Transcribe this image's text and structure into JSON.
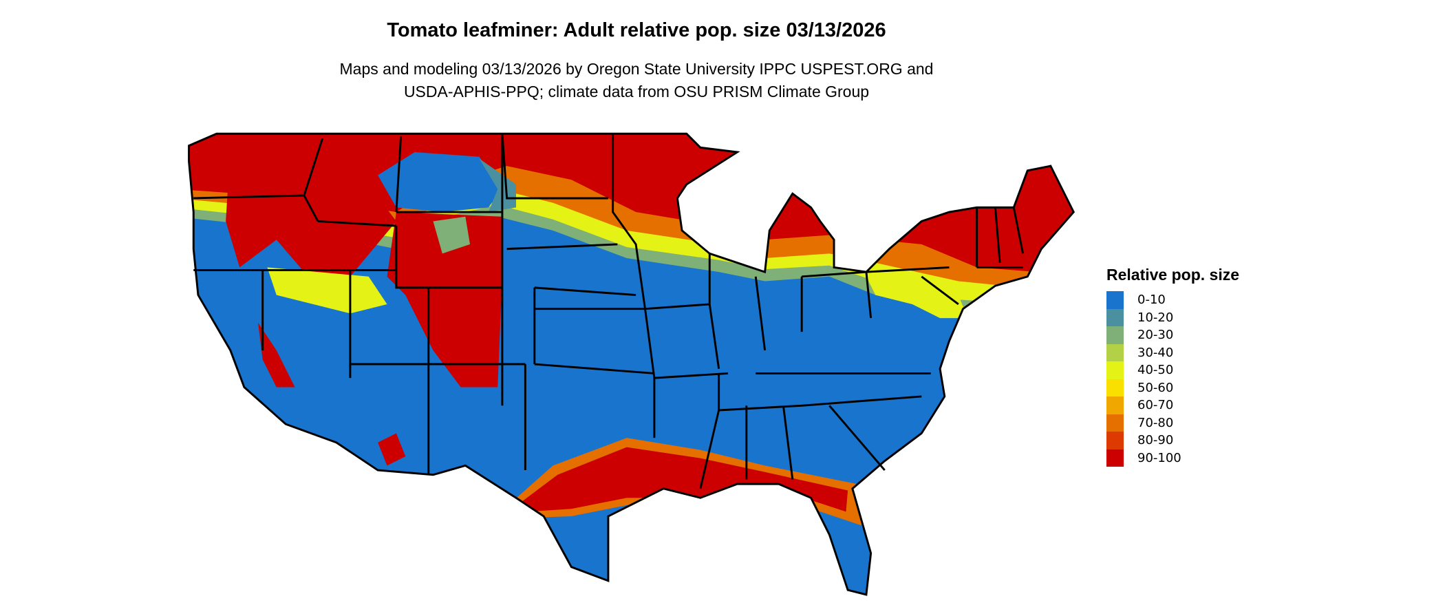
{
  "header": {
    "title": "Tomato leafminer: Adult relative pop. size 03/13/2026",
    "subtitle_line1": "Maps and modeling 03/13/2026 by Oregon State University IPPC USPEST.ORG and",
    "subtitle_line2": "USDA-APHIS-PPQ; climate data from OSU PRISM Climate Group"
  },
  "map": {
    "region": "Contiguous United States",
    "background_class_color": "#1874cd"
  },
  "legend": {
    "title": "Relative pop. size",
    "items": [
      {
        "label": "0-10",
        "color": "#1874cd"
      },
      {
        "label": "10-20",
        "color": "#4a90a0"
      },
      {
        "label": "20-30",
        "color": "#7fb077"
      },
      {
        "label": "30-40",
        "color": "#b2d146"
      },
      {
        "label": "40-50",
        "color": "#e5f215"
      },
      {
        "label": "50-60",
        "color": "#f9e000"
      },
      {
        "label": "60-70",
        "color": "#f0a800"
      },
      {
        "label": "70-80",
        "color": "#e57000"
      },
      {
        "label": "80-90",
        "color": "#dc3a00"
      },
      {
        "label": "90-100",
        "color": "#cc0000"
      }
    ]
  }
}
